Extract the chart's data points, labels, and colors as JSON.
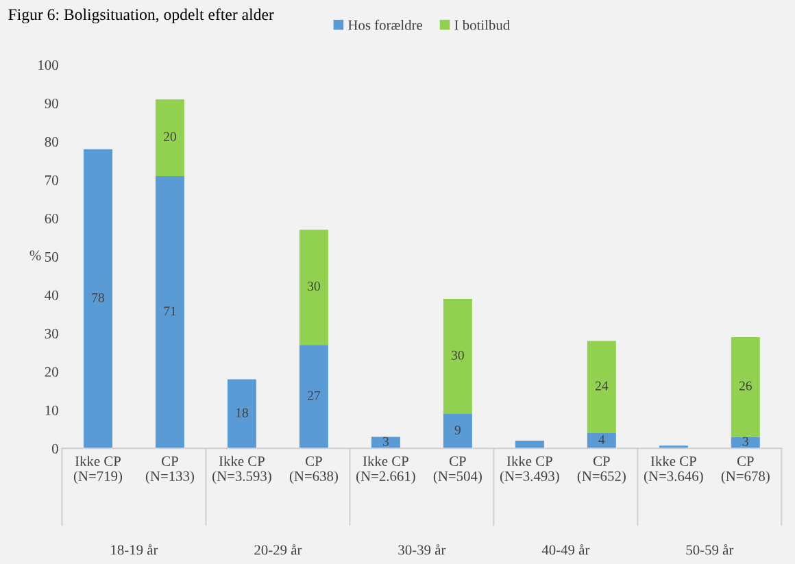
{
  "chart_data": {
    "type": "bar",
    "stacked": true,
    "title": "Figur 6: Boligsituation, opdelt efter alder",
    "ylabel": "%",
    "categories": [
      "Ikke CP\n(N=719)",
      "CP\n(N=133)",
      "Ikke CP\n(N=3.593)",
      "CP\n(N=638)",
      "Ikke CP\n(N=2.661)",
      "CP\n(N=504)",
      "Ikke CP\n(N=3.493)",
      "CP\n(N=652)",
      "Ikke CP\n(N=3.646)",
      "CP\n(N=678)"
    ],
    "annotations": [
      "18-19 år",
      "20-29 år",
      "30-39 år",
      "40-49 år",
      "50-59 år"
    ],
    "series": [
      {
        "name": "Hos forældre",
        "color": "#5b9bd5",
        "values": [
          78,
          71,
          18,
          27,
          3,
          9,
          2,
          4,
          0.7,
          3
        ],
        "value_labels": [
          "78",
          "71",
          "18",
          "27",
          "3",
          "9",
          null,
          "4",
          null,
          "3"
        ]
      },
      {
        "name": "I botilbud",
        "color": "#92d050",
        "values": [
          null,
          20,
          null,
          30,
          null,
          30,
          null,
          24,
          null,
          26
        ],
        "value_labels": [
          null,
          "20",
          null,
          "30",
          null,
          "30",
          null,
          "24",
          null,
          "26"
        ]
      }
    ],
    "ylim": [
      0,
      100
    ],
    "yticks": [
      0,
      10,
      20,
      30,
      40,
      50,
      60,
      70,
      80,
      90,
      100
    ],
    "grid": false,
    "legend": "top"
  }
}
